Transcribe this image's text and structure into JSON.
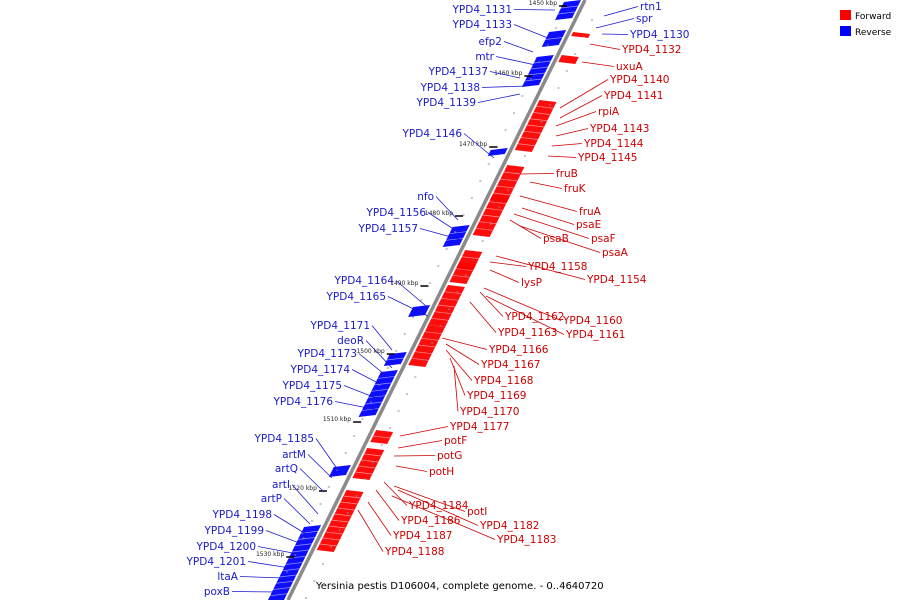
{
  "caption": "Yersinia pestis D106004, complete genome. - 0..4640720",
  "legend": [
    {
      "label": "Forward",
      "color": "#ff0000"
    },
    {
      "label": "Reverse",
      "color": "#0000ff"
    }
  ],
  "colors": {
    "forward": "#ff0000",
    "reverse": "#0000ff",
    "forward_label": "#cc0000",
    "reverse_label": "#1a1acc",
    "backbone": "#888888"
  },
  "ticks": [
    "1450 kbp",
    "1460 kbp",
    "1470 kbp",
    "1480 kbp",
    "1490 kbp",
    "1500 kbp",
    "1510 kbp",
    "1520 kbp",
    "1530 kbp"
  ],
  "reverse_genes": [
    "YPD4_1131",
    "YPD4_1133",
    "efp2",
    "mtr",
    "YPD4_1137",
    "YPD4_1138",
    "YPD4_1139",
    "YPD4_1146",
    "nfo",
    "YPD4_1156",
    "YPD4_1157",
    "YPD4_1164",
    "YPD4_1165",
    "YPD4_1171",
    "deoR",
    "YPD4_1173",
    "YPD4_1174",
    "YPD4_1175",
    "YPD4_1176",
    "YPD4_1185",
    "artM",
    "artQ",
    "artI",
    "artP",
    "YPD4_1198",
    "YPD4_1199",
    "YPD4_1200",
    "YPD4_1201",
    "ltaA",
    "poxB",
    "rtn1",
    "spr",
    "YPD4_1130"
  ],
  "forward_genes": [
    "YPD4_1132",
    "uxuA",
    "YPD4_1140",
    "YPD4_1141",
    "rpiA",
    "YPD4_1143",
    "YPD4_1144",
    "YPD4_1145",
    "fruB",
    "fruK",
    "fruA",
    "psaE",
    "psaF",
    "psaB",
    "psaA",
    "YPD4_1158",
    "YPD4_1154",
    "lysP",
    "YPD4_1162",
    "YPD4_1160",
    "YPD4_1163",
    "YPD4_1161",
    "YPD4_1166",
    "YPD4_1167",
    "YPD4_1168",
    "YPD4_1169",
    "YPD4_1170",
    "YPD4_1177",
    "potF",
    "potG",
    "potH",
    "YPD4_1184",
    "potI",
    "YPD4_1186",
    "YPD4_1182",
    "YPD4_1187",
    "YPD4_1183",
    "YPD4_1188"
  ]
}
